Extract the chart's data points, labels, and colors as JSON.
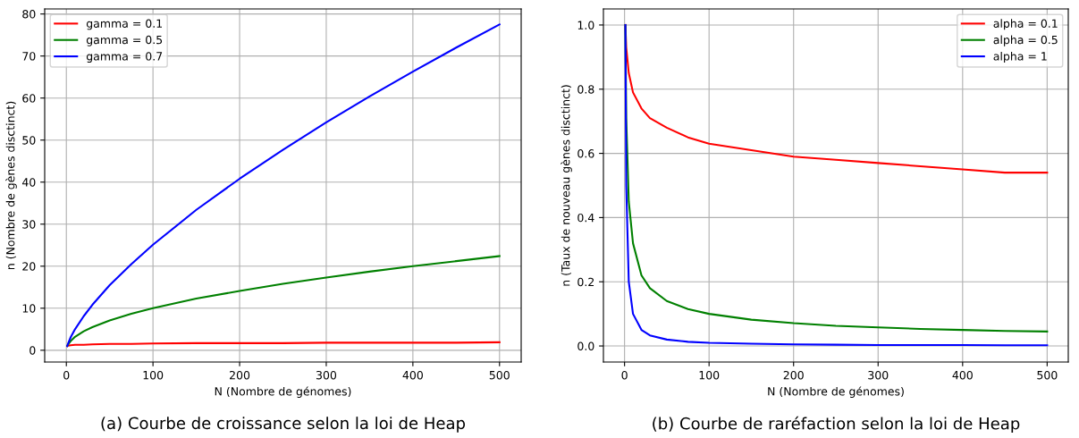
{
  "chart_data": [
    {
      "type": "line",
      "xlabel": "N (Nombre de génomes)",
      "ylabel": "n (Nombre de gènes disctinct)",
      "annotations": [
        "(a) Courbe de croissance selon la loi de Heap"
      ],
      "x": [
        1,
        2,
        5,
        10,
        20,
        30,
        50,
        75,
        100,
        150,
        200,
        250,
        300,
        350,
        400,
        450,
        500
      ],
      "series": [
        {
          "name": "gamma = 0.1",
          "color": "#ff0000",
          "values": [
            1,
            1.1,
            1.2,
            1.3,
            1.3,
            1.4,
            1.5,
            1.5,
            1.6,
            1.7,
            1.7,
            1.7,
            1.8,
            1.8,
            1.8,
            1.8,
            1.9
          ]
        },
        {
          "name": "gamma = 0.5",
          "color": "#008000",
          "values": [
            1,
            1.4,
            2.2,
            3.2,
            4.5,
            5.5,
            7.1,
            8.7,
            10,
            12.3,
            14.1,
            15.8,
            17.3,
            18.7,
            20,
            21.2,
            22.4
          ]
        },
        {
          "name": "gamma = 0.7",
          "color": "#0000ff",
          "values": [
            1,
            1.6,
            3.1,
            5,
            8.1,
            10.8,
            15.5,
            20.5,
            25.1,
            33.4,
            40.8,
            47.7,
            54.2,
            60.4,
            66.3,
            72,
            77.5
          ]
        }
      ],
      "xlim": [
        -25,
        525
      ],
      "xticks": [
        0,
        100,
        200,
        300,
        400,
        500
      ],
      "ylim": [
        -2.8,
        81.2
      ],
      "yticks": [
        0,
        10,
        20,
        30,
        40,
        50,
        60,
        70,
        80
      ],
      "grid": true,
      "legend": "top left",
      "line_style": "solid",
      "marker": "none"
    },
    {
      "type": "line",
      "xlabel": "N (Nombre de génomes)",
      "ylabel": "n (Taux de nouveau gènes disctinct)",
      "annotations": [
        "(b) Courbe de raréfaction selon la loi de Heap"
      ],
      "x": [
        1,
        2,
        5,
        10,
        20,
        30,
        50,
        75,
        100,
        150,
        200,
        250,
        300,
        350,
        400,
        450,
        500
      ],
      "series": [
        {
          "name": "alpha = 0.1",
          "color": "#ff0000",
          "values": [
            1,
            0.93,
            0.85,
            0.79,
            0.74,
            0.71,
            0.68,
            0.65,
            0.63,
            0.61,
            0.59,
            0.58,
            0.57,
            0.56,
            0.55,
            0.54,
            0.54
          ]
        },
        {
          "name": "alpha = 0.5",
          "color": "#008000",
          "values": [
            1,
            0.71,
            0.45,
            0.32,
            0.22,
            0.18,
            0.14,
            0.115,
            0.1,
            0.082,
            0.071,
            0.063,
            0.058,
            0.053,
            0.05,
            0.047,
            0.045
          ]
        },
        {
          "name": "alpha = 1",
          "color": "#0000ff",
          "values": [
            1,
            0.5,
            0.2,
            0.1,
            0.05,
            0.033,
            0.02,
            0.013,
            0.01,
            0.007,
            0.005,
            0.004,
            0.003,
            0.003,
            0.003,
            0.002,
            0.002
          ]
        }
      ],
      "xlim": [
        -25,
        525
      ],
      "xticks": [
        0,
        100,
        200,
        300,
        400,
        500
      ],
      "ylim": [
        -0.05,
        1.05
      ],
      "yticks": [
        {
          "value": 0,
          "label": "0.0"
        },
        {
          "value": 0.2,
          "label": "0.2"
        },
        {
          "value": 0.4,
          "label": "0.4"
        },
        {
          "value": 0.6,
          "label": "0.6"
        },
        {
          "value": 0.8,
          "label": "0.8"
        },
        {
          "value": 1,
          "label": "1.0"
        }
      ],
      "grid": true,
      "legend": "top right",
      "line_style": "solid",
      "marker": "none"
    }
  ]
}
